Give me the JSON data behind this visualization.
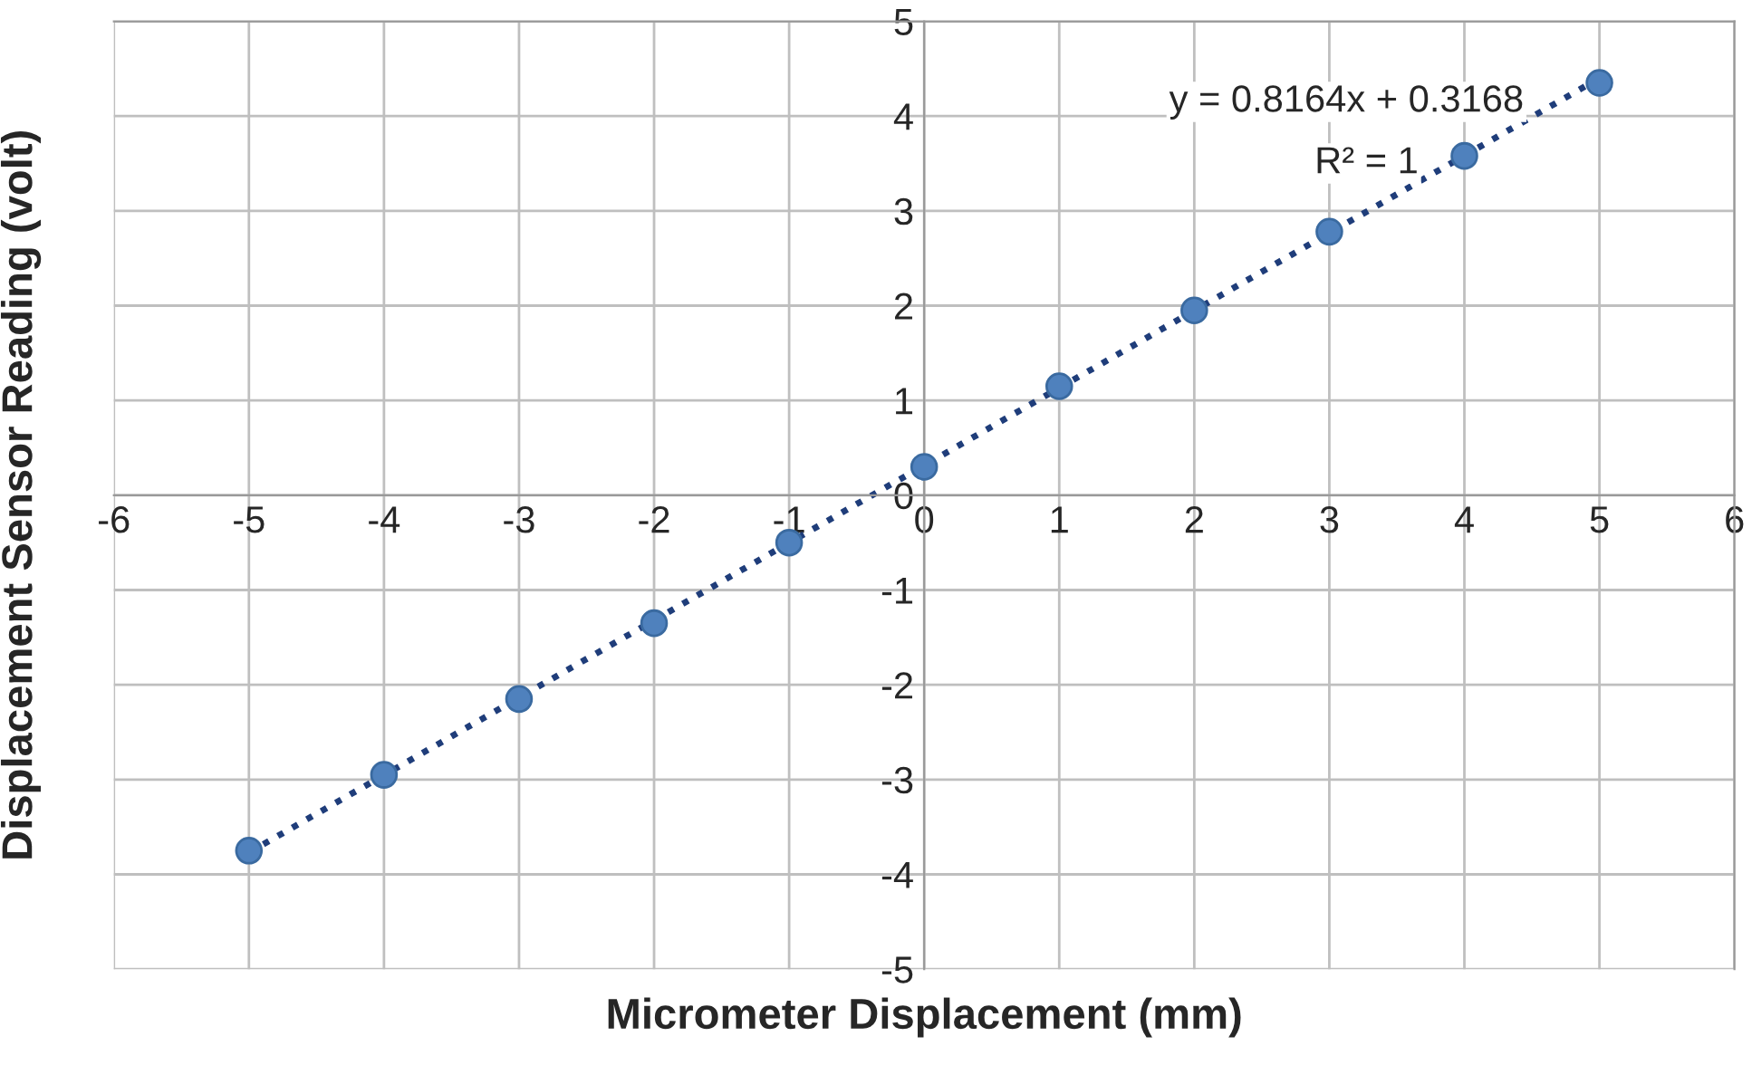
{
  "chart_data": {
    "type": "scatter",
    "xlabel": "Micrometer Displacement (mm)",
    "ylabel": "Displacement Sensor Reading (volt)",
    "x": [
      -5,
      -4,
      -3,
      -2,
      -1,
      0,
      1,
      2,
      3,
      4,
      5
    ],
    "series": [
      {
        "color": "#4f81bd",
        "values": [
          -3.75,
          -2.95,
          -2.15,
          -1.35,
          -0.5,
          0.3,
          1.15,
          1.95,
          2.78,
          3.58,
          4.35
        ]
      },
      {
        "type": "line",
        "color": "#1f3d7a",
        "line_style": "dotted",
        "marker": "none",
        "x": [
          -5,
          5
        ],
        "values": [
          -3.77,
          4.4
        ]
      }
    ],
    "annotations": [
      "y = 0.8164x + 0.3168",
      "R² = 1"
    ],
    "xlim": [
      -6,
      6
    ],
    "ylim": [
      -5,
      5
    ],
    "xticks": [
      -6,
      -5,
      -4,
      -3,
      -2,
      -1,
      0,
      1,
      2,
      3,
      4,
      5,
      6
    ],
    "yticks": [
      -5,
      -4,
      -3,
      -2,
      -1,
      0,
      1,
      2,
      3,
      4,
      5
    ],
    "grid": true,
    "marker": "circle"
  }
}
